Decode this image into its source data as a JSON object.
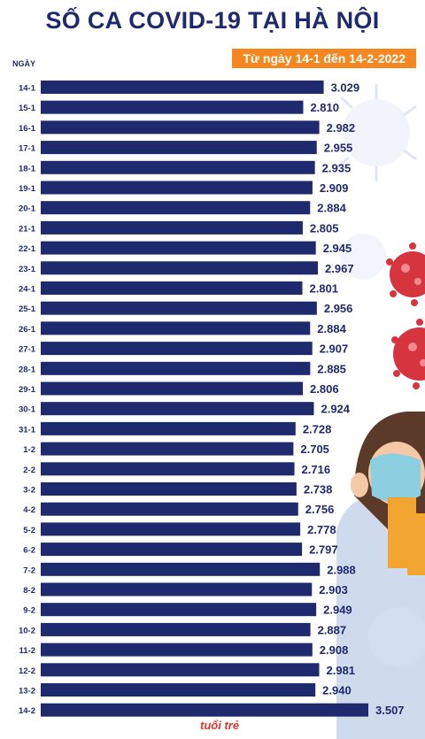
{
  "header": {
    "title": "SỐ CA COVID-19 TẠI HÀ NỘI",
    "subtitle": "Từ ngày 14-1 đến 14-2-2022",
    "y_heading": "NGÀY"
  },
  "brand": {
    "logo_text": "tuổi trẻ"
  },
  "colors": {
    "bar": "#1f2a6e",
    "label": "#1f2a6e",
    "accent": "#f4871f",
    "virus": "#d6343f"
  },
  "chart_data": {
    "type": "bar",
    "orientation": "horizontal",
    "title": "SỐ CA COVID-19 TẠI HÀ NỘI",
    "subtitle": "Từ ngày 14-1 đến 14-2-2022",
    "ylabel": "NGÀY",
    "categories": [
      "14-1",
      "15-1",
      "16-1",
      "17-1",
      "18-1",
      "19-1",
      "20-1",
      "21-1",
      "22-1",
      "23-1",
      "24-1",
      "25-1",
      "26-1",
      "27-1",
      "28-1",
      "29-1",
      "30-1",
      "31-1",
      "1-2",
      "2-2",
      "3-2",
      "4-2",
      "5-2",
      "6-2",
      "7-2",
      "8-2",
      "9-2",
      "10-2",
      "11-2",
      "12-2",
      "13-2",
      "14-2"
    ],
    "values": [
      3029,
      2810,
      2982,
      2955,
      2935,
      2909,
      2884,
      2805,
      2945,
      2967,
      2801,
      2956,
      2884,
      2907,
      2885,
      2806,
      2924,
      2728,
      2705,
      2716,
      2738,
      2756,
      2778,
      2797,
      2988,
      2903,
      2949,
      2887,
      2908,
      2981,
      2940,
      3507
    ],
    "value_labels": [
      "3.029",
      "2.810",
      "2.982",
      "2.955",
      "2.935",
      "2.909",
      "2.884",
      "2.805",
      "2.945",
      "2.967",
      "2.801",
      "2.956",
      "2.884",
      "2.907",
      "2.885",
      "2.806",
      "2.924",
      "2.728",
      "2.705",
      "2.716",
      "2.738",
      "2.756",
      "2.778",
      "2.797",
      "2.988",
      "2.903",
      "2.949",
      "2.887",
      "2.908",
      "2.981",
      "2.940",
      "3.507"
    ],
    "xlim": [
      0,
      3507
    ],
    "grid": false,
    "legend": "none"
  }
}
